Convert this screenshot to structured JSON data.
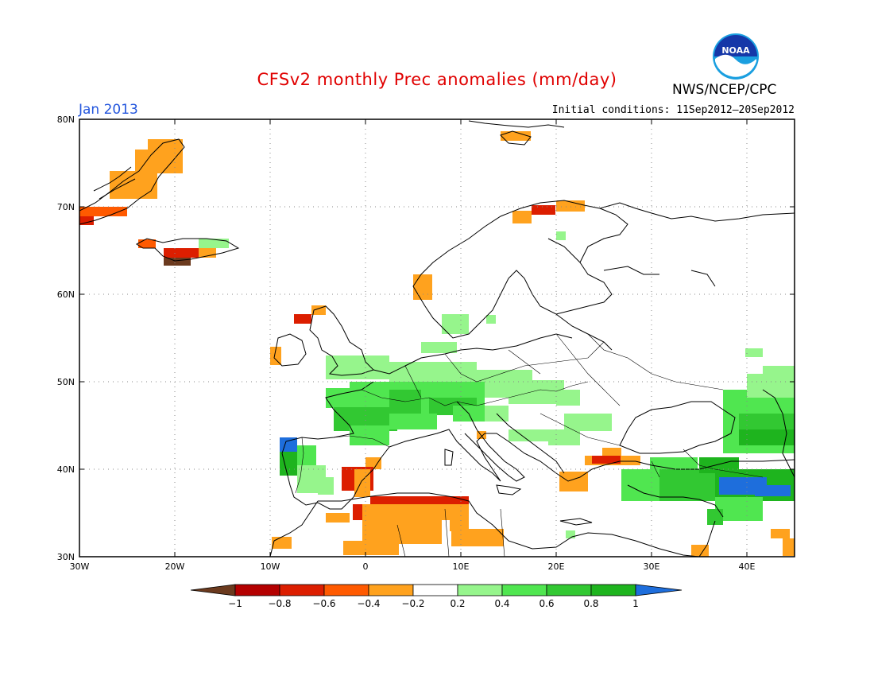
{
  "header": {
    "title": "CFSv2 monthly Prec anomalies (mm/day)",
    "month": "Jan 2013",
    "initial_conditions": "Initial conditions: 11Sep2012–20Sep2012",
    "agency": "NWS/NCEP/CPC",
    "logo_text": "NOAA",
    "title_color": "#e00000",
    "month_color": "#2255dd"
  },
  "map": {
    "lon_range": [
      -30,
      45
    ],
    "lat_range": [
      30,
      80
    ],
    "lat_ticks": [
      "80N",
      "70N",
      "60N",
      "50N",
      "40N",
      "30N"
    ],
    "lon_ticks": [
      "30W",
      "20W",
      "10W",
      "0",
      "10E",
      "20E",
      "30E",
      "40E"
    ],
    "grid": "dotted"
  },
  "colorbar": {
    "labels": [
      "−1",
      "−0.8",
      "−0.6",
      "−0.4",
      "−0.2",
      "0.2",
      "0.4",
      "0.6",
      "0.8",
      "1"
    ],
    "colors": [
      "#6b3a1e",
      "#b40000",
      "#dc1e00",
      "#ff5a00",
      "#ffa21e",
      "#ffffff",
      "#96f58c",
      "#50e650",
      "#32c832",
      "#1eb41e",
      "#1e6edc"
    ]
  }
}
